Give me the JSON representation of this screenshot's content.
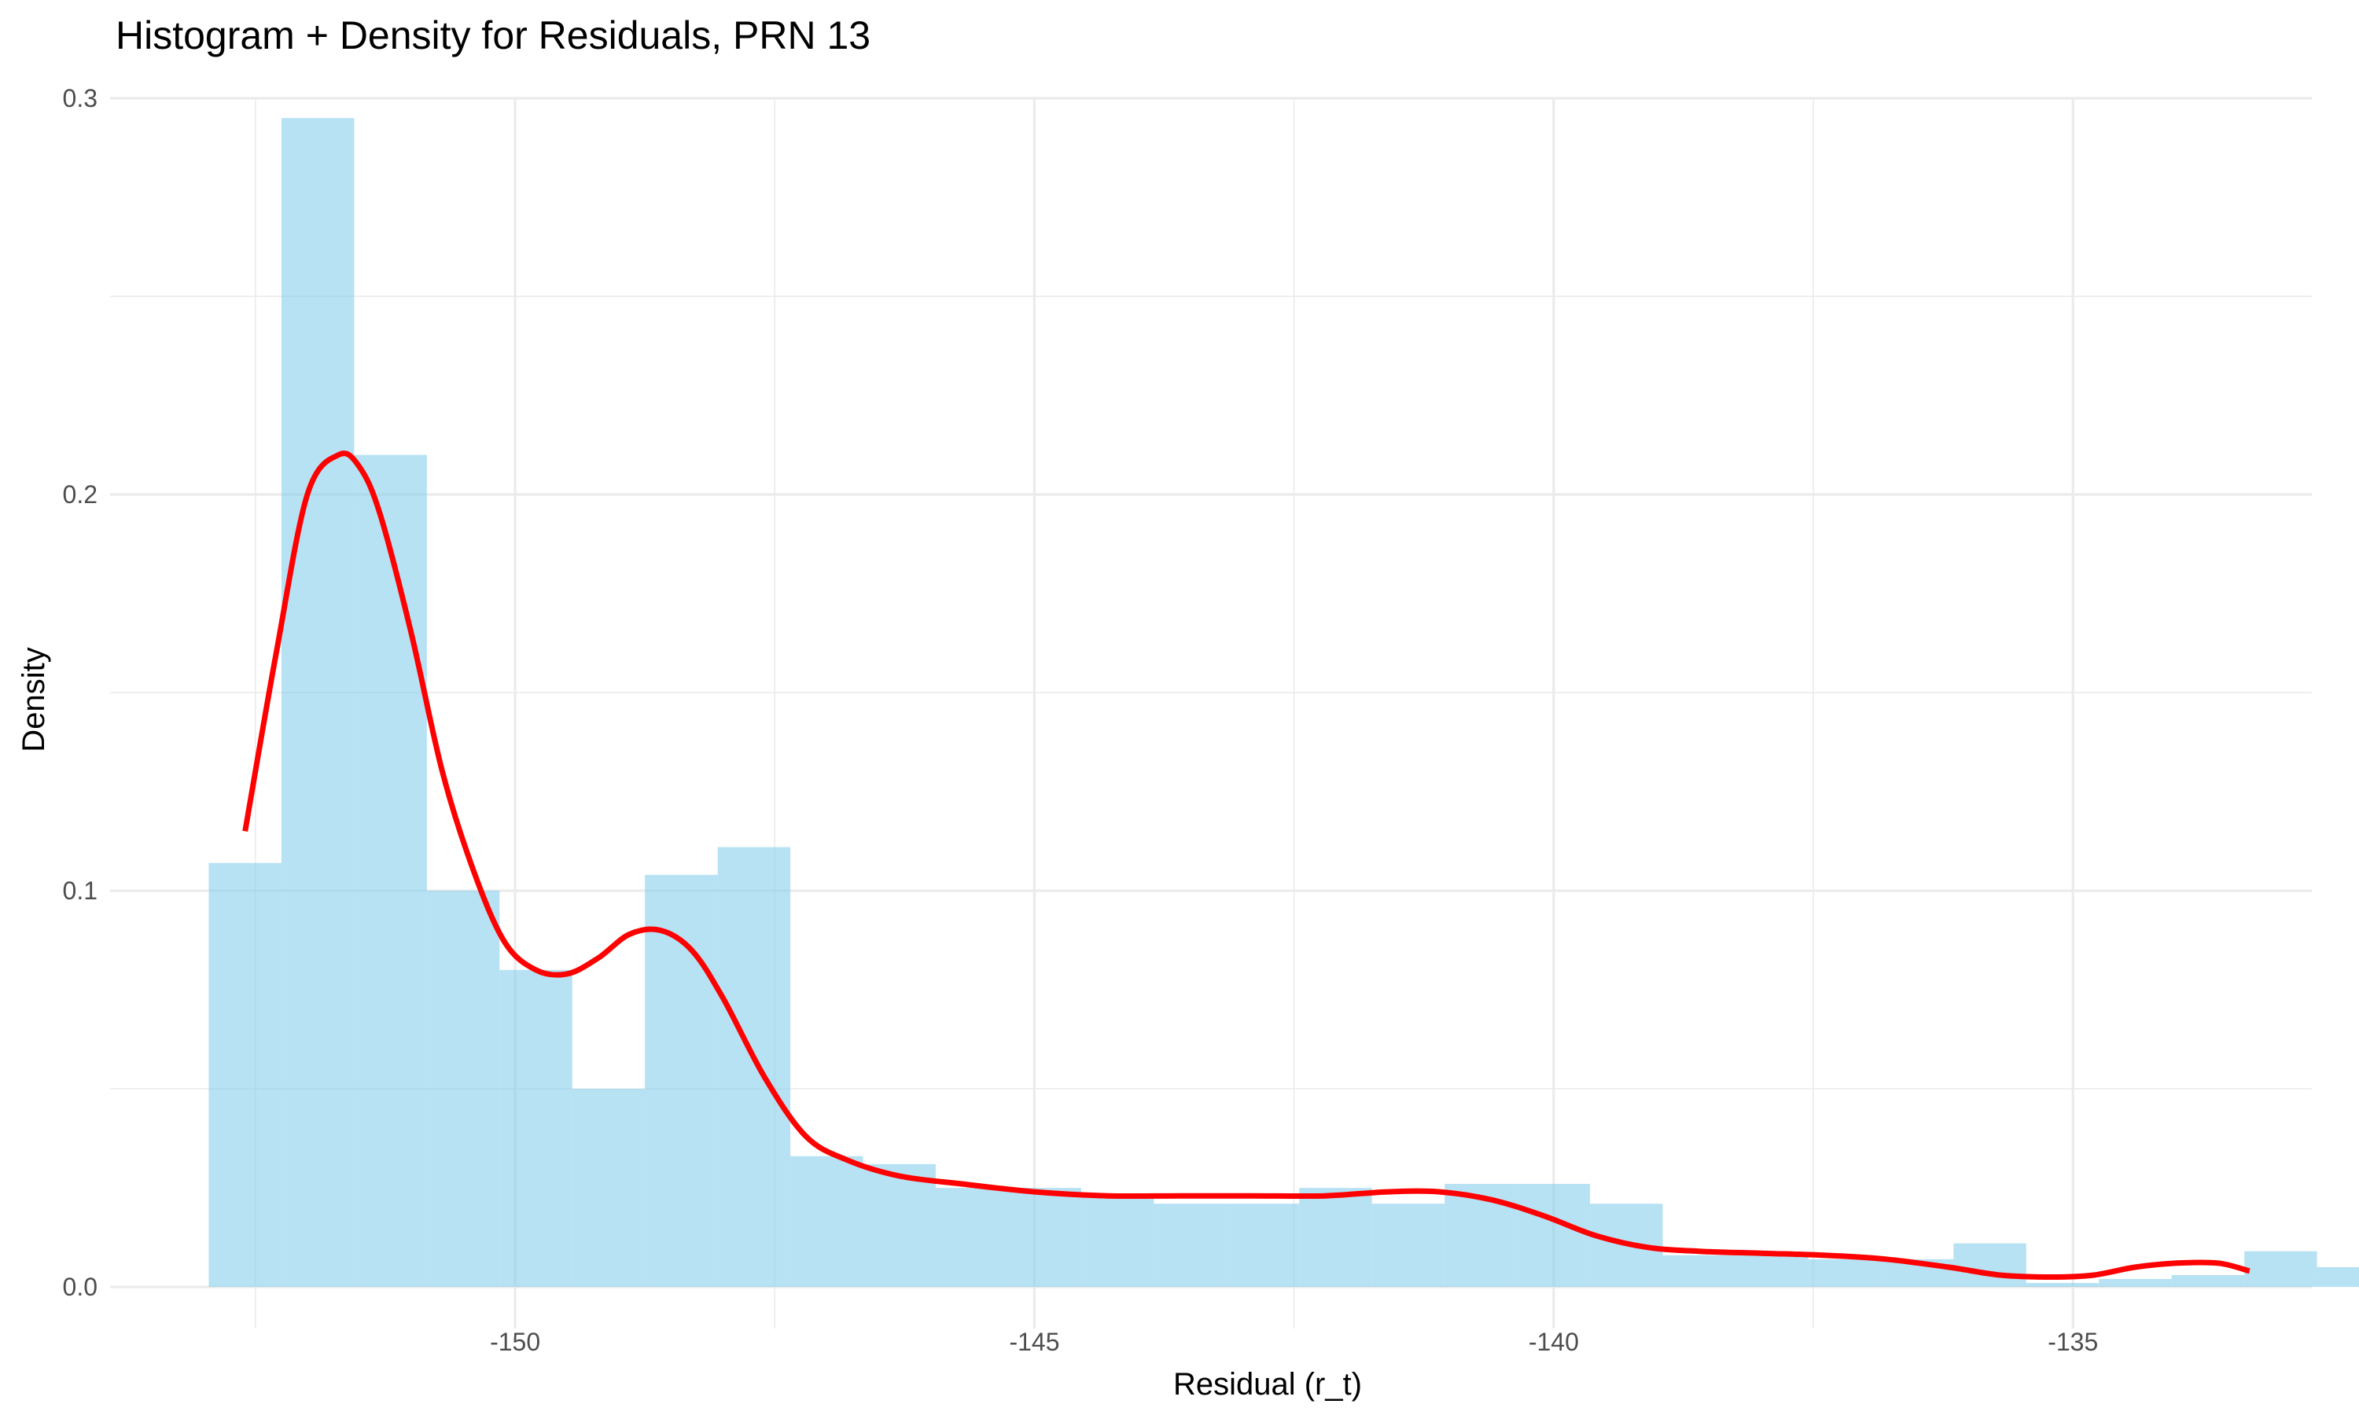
{
  "chart_data": {
    "type": "bar",
    "title": "Histogram + Density for Residuals, PRN 13",
    "xlabel": "Residual (r_t)",
    "ylabel": "Density",
    "xlim": [
      -153.9,
      -132.7
    ],
    "ylim": [
      -0.0105,
      0.3
    ],
    "x_ticks": [
      -150,
      -145,
      -140,
      -135
    ],
    "x_tick_labels": [
      "-150",
      "-145",
      "-140",
      "-135"
    ],
    "y_ticks": [
      0.0,
      0.1,
      0.2,
      0.3
    ],
    "y_tick_labels": [
      "0.0",
      "0.1",
      "0.2",
      "0.3"
    ],
    "grid": true,
    "legend": "none",
    "colors": {
      "bars": "#87ceeb",
      "density": "#ff0000",
      "grid": "#ebebeb"
    },
    "series": [
      {
        "type": "histogram",
        "bin_width": 0.7,
        "bin_edges": [
          -152.95,
          -152.25,
          -151.55,
          -150.85,
          -150.15,
          -149.45,
          -148.75,
          -148.05,
          -147.35,
          -146.65,
          -145.95,
          -145.25,
          -144.55,
          -143.85,
          -143.15,
          -142.45,
          -141.75,
          -141.05,
          -140.35,
          -139.65,
          -138.95,
          -138.25,
          -137.55,
          -136.85,
          -136.15,
          -135.45,
          -134.75,
          -134.05,
          -133.35,
          -132.65
        ],
        "values": [
          0.107,
          0.295,
          0.21,
          0.1,
          0.08,
          0.05,
          0.104,
          0.111,
          0.033,
          0.031,
          0.025,
          0.025,
          0.023,
          0.021,
          0.021,
          0.025,
          0.021,
          0.026,
          0.026,
          0.021,
          0.008,
          0.008,
          0.007,
          0.007,
          0.011,
          0.001,
          0.002,
          0.003,
          0.009,
          0.005
        ]
      },
      {
        "type": "line",
        "x": [
          -152.6,
          -152.3,
          -152.0,
          -151.7,
          -151.5,
          -151.3,
          -151.0,
          -150.7,
          -150.4,
          -150.1,
          -149.8,
          -149.5,
          -149.2,
          -148.9,
          -148.6,
          -148.3,
          -148.0,
          -147.6,
          -147.2,
          -146.8,
          -146.3,
          -145.7,
          -145.0,
          -144.3,
          -143.6,
          -142.9,
          -142.2,
          -141.6,
          -141.1,
          -140.6,
          -140.1,
          -139.6,
          -139.1,
          -138.6,
          -138.0,
          -137.4,
          -136.8,
          -136.2,
          -135.7,
          -135.2,
          -134.8,
          -134.4,
          -134.0,
          -133.6,
          -133.3
        ],
        "values": [
          0.115,
          0.16,
          0.2,
          0.21,
          0.207,
          0.195,
          0.165,
          0.13,
          0.105,
          0.087,
          0.08,
          0.079,
          0.083,
          0.089,
          0.09,
          0.085,
          0.073,
          0.053,
          0.038,
          0.032,
          0.028,
          0.026,
          0.024,
          0.023,
          0.023,
          0.023,
          0.023,
          0.024,
          0.024,
          0.022,
          0.018,
          0.013,
          0.01,
          0.009,
          0.0085,
          0.008,
          0.007,
          0.005,
          0.003,
          0.0025,
          0.003,
          0.005,
          0.006,
          0.006,
          0.004
        ]
      }
    ]
  }
}
